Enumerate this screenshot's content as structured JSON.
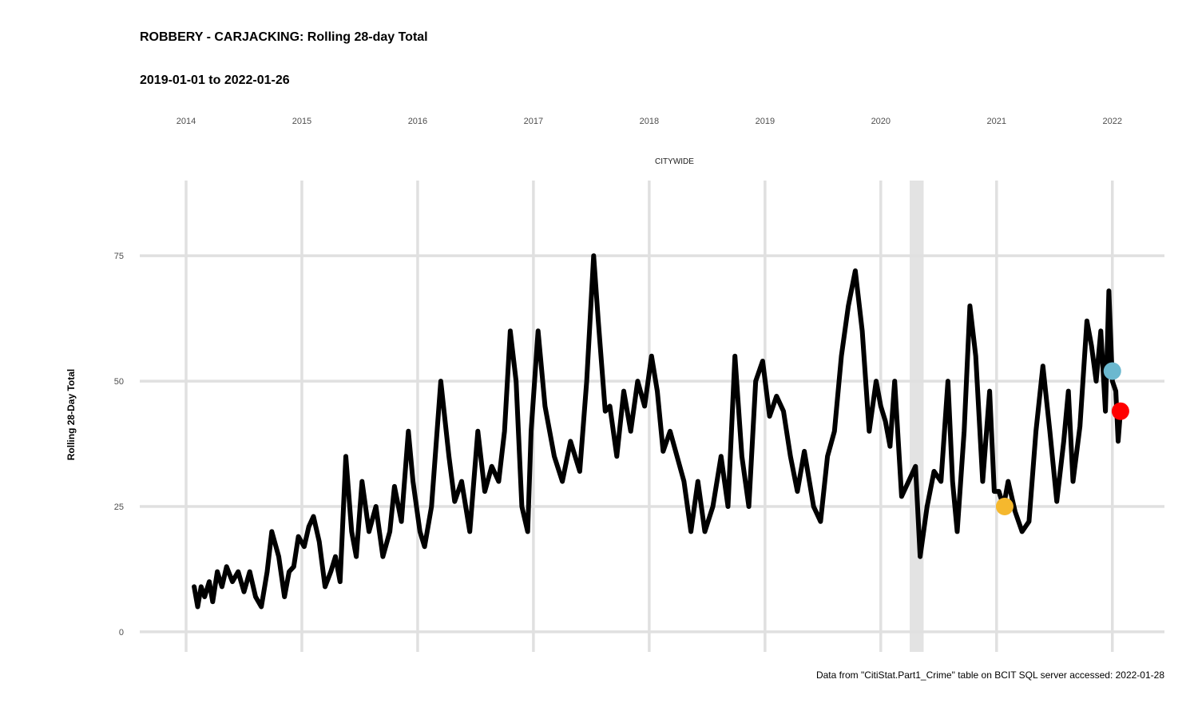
{
  "chart_data": {
    "type": "line",
    "title": "ROBBERY - CARJACKING: Rolling 28-day Total",
    "subtitle": "2019-01-01 to 2022-01-26",
    "facet_label": "CITYWIDE",
    "xlabel": "",
    "ylabel": "Rolling 28-Day Total",
    "caption": "Data from \"CitiStat.Part1_Crime\" table on BCIT SQL server accessed: 2022-01-28",
    "x_ticks": [
      "2014",
      "2015",
      "2016",
      "2017",
      "2018",
      "2019",
      "2020",
      "2021",
      "2022"
    ],
    "y_ticks": [
      0,
      25,
      50,
      75
    ],
    "xlim": [
      2013.6,
      2022.45
    ],
    "ylim": [
      -4,
      90
    ],
    "grid": true,
    "shaded_band": {
      "x0": 2020.25,
      "x1": 2020.37,
      "color": "#e3e3e3"
    },
    "series": [
      {
        "color": "#000000",
        "x": [
          2014.07,
          2014.1,
          2014.13,
          2014.16,
          2014.2,
          2014.23,
          2014.27,
          2014.31,
          2014.35,
          2014.4,
          2014.45,
          2014.5,
          2014.55,
          2014.6,
          2014.65,
          2014.7,
          2014.74,
          2014.8,
          2014.85,
          2014.89,
          2014.93,
          2014.97,
          2015.02,
          2015.06,
          2015.1,
          2015.15,
          2015.2,
          2015.25,
          2015.29,
          2015.33,
          2015.38,
          2015.43,
          2015.47,
          2015.52,
          2015.58,
          2015.64,
          2015.7,
          2015.76,
          2015.8,
          2015.86,
          2015.92,
          2015.96,
          2016.02,
          2016.06,
          2016.12,
          2016.2,
          2016.27,
          2016.32,
          2016.38,
          2016.45,
          2016.52,
          2016.58,
          2016.64,
          2016.7,
          2016.75,
          2016.8,
          2016.85,
          2016.9,
          2016.95,
          2016.98,
          2017.04,
          2017.1,
          2017.18,
          2017.25,
          2017.32,
          2017.4,
          2017.46,
          2017.52,
          2017.56,
          2017.62,
          2017.66,
          2017.72,
          2017.78,
          2017.84,
          2017.9,
          2017.96,
          2018.02,
          2018.07,
          2018.12,
          2018.18,
          2018.24,
          2018.3,
          2018.36,
          2018.42,
          2018.48,
          2018.55,
          2018.62,
          2018.68,
          2018.74,
          2018.8,
          2018.86,
          2018.92,
          2018.98,
          2019.04,
          2019.1,
          2019.16,
          2019.22,
          2019.28,
          2019.34,
          2019.42,
          2019.48,
          2019.54,
          2019.6,
          2019.66,
          2019.72,
          2019.78,
          2019.84,
          2019.9,
          2019.96,
          2020.0,
          2020.04,
          2020.08,
          2020.12,
          2020.18,
          2020.24,
          2020.3,
          2020.34,
          2020.4,
          2020.46,
          2020.52,
          2020.58,
          2020.62,
          2020.66,
          2020.72,
          2020.77,
          2020.82,
          2020.88,
          2020.94,
          2020.98,
          2021.02,
          2021.06,
          2021.1,
          2021.16,
          2021.22,
          2021.28,
          2021.34,
          2021.4,
          2021.46,
          2021.52,
          2021.58,
          2021.62,
          2021.66,
          2021.72,
          2021.78,
          2021.82,
          2021.86,
          2021.9,
          2021.94,
          2021.97,
          2022.0,
          2022.03,
          2022.05,
          2022.07
        ],
        "y": [
          9,
          5,
          9,
          7,
          10,
          6,
          12,
          9,
          13,
          10,
          12,
          8,
          12,
          7,
          5,
          12,
          20,
          15,
          7,
          12,
          13,
          19,
          17,
          21,
          23,
          18,
          9,
          12,
          15,
          10,
          35,
          20,
          15,
          30,
          20,
          25,
          15,
          20,
          29,
          22,
          40,
          30,
          20,
          17,
          25,
          50,
          35,
          26,
          30,
          20,
          40,
          28,
          33,
          30,
          40,
          60,
          50,
          25,
          20,
          40,
          60,
          45,
          35,
          30,
          38,
          32,
          50,
          75,
          62,
          44,
          45,
          35,
          48,
          40,
          50,
          45,
          55,
          48,
          36,
          40,
          35,
          30,
          20,
          30,
          20,
          25,
          35,
          25,
          55,
          35,
          25,
          50,
          54,
          43,
          47,
          44,
          35,
          28,
          36,
          25,
          22,
          35,
          40,
          55,
          65,
          72,
          60,
          40,
          50,
          45,
          42,
          37,
          50,
          27,
          30,
          33,
          15,
          25,
          32,
          30,
          50,
          30,
          20,
          40,
          65,
          55,
          30,
          48,
          28,
          28,
          25,
          30,
          24,
          20,
          22,
          40,
          53,
          40,
          26,
          38,
          48,
          30,
          41,
          62,
          57,
          50,
          60,
          44,
          68,
          50,
          48,
          38,
          44
        ]
      }
    ],
    "points": [
      {
        "x": 2021.07,
        "y": 25,
        "color": "#f5b82e"
      },
      {
        "x": 2022.0,
        "y": 52,
        "color": "#6bb8cf"
      },
      {
        "x": 2022.07,
        "y": 44,
        "color": "#ff0000"
      }
    ]
  }
}
